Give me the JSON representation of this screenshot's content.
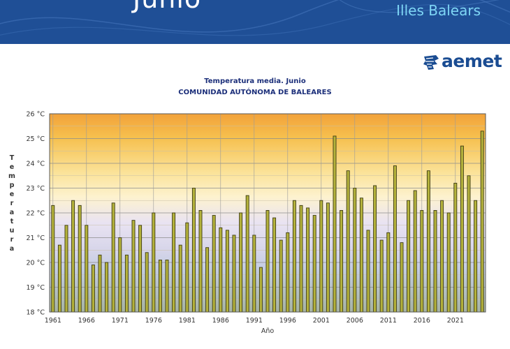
{
  "banner": {
    "title": "Junio",
    "subtitle": "Illes Balears",
    "color": "#1f4f96"
  },
  "logo": {
    "text": "aemet",
    "color": "#1a4c92"
  },
  "chart_data": {
    "type": "bar",
    "title": "Temperatura media. Junio",
    "subtitle": "COMUNIDAD AUTÓNOMA DE BALEARES",
    "xlabel": "Año",
    "ylabel": "Temperatura",
    "ylim": [
      18,
      26
    ],
    "yticks": [
      "18 °C",
      "19 °C",
      "20 °C",
      "21 °C",
      "22 °C",
      "23 °C",
      "24 °C",
      "25 °C",
      "26 °C"
    ],
    "xticks": [
      "1961",
      "1966",
      "1971",
      "1976",
      "1981",
      "1986",
      "1991",
      "1996",
      "2001",
      "2006",
      "2011",
      "2016",
      "2021"
    ],
    "grid": true,
    "bar_color": "#b4b23c",
    "categories": [
      1961,
      1962,
      1963,
      1964,
      1965,
      1966,
      1967,
      1968,
      1969,
      1970,
      1971,
      1972,
      1973,
      1974,
      1975,
      1976,
      1977,
      1978,
      1979,
      1980,
      1981,
      1982,
      1983,
      1984,
      1985,
      1986,
      1987,
      1988,
      1989,
      1990,
      1991,
      1992,
      1993,
      1994,
      1995,
      1996,
      1997,
      1998,
      1999,
      2000,
      2001,
      2002,
      2003,
      2004,
      2005,
      2006,
      2007,
      2008,
      2009,
      2010,
      2011,
      2012,
      2013,
      2014,
      2015,
      2016,
      2017,
      2018,
      2019,
      2020,
      2021,
      2022,
      2023,
      2024,
      2025
    ],
    "values": [
      22.3,
      20.7,
      21.5,
      22.5,
      22.3,
      21.5,
      19.9,
      20.3,
      20.0,
      22.4,
      21.0,
      20.3,
      21.7,
      21.5,
      20.4,
      22.0,
      20.1,
      20.1,
      22.0,
      20.7,
      21.6,
      23.0,
      22.1,
      20.6,
      21.9,
      21.4,
      21.3,
      21.1,
      22.0,
      22.7,
      21.1,
      19.8,
      22.1,
      21.8,
      20.9,
      21.2,
      22.5,
      22.3,
      22.2,
      21.9,
      22.5,
      22.4,
      25.1,
      22.1,
      23.7,
      23.0,
      22.6,
      21.3,
      23.1,
      20.9,
      21.2,
      23.9,
      20.8,
      22.5,
      22.9,
      22.1,
      23.7,
      22.1,
      22.5,
      22.0,
      23.2,
      24.7,
      23.5,
      22.5,
      25.3
    ]
  }
}
